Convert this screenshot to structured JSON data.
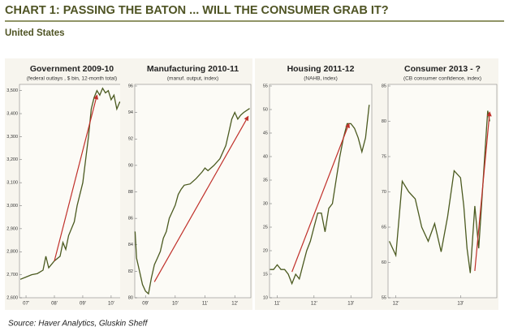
{
  "header": {
    "title": "CHART 1: PASSING THE BATON ... WILL THE CONSUMER GRAB IT?",
    "subtitle": "United States"
  },
  "source": "Source: Haver Analytics, Gluskin Sheff",
  "chart_data": [
    {
      "type": "line",
      "title": "Government 2009-10",
      "subtitle": "(federal outlays , $ bin, 12-month total)",
      "color": "#4b5a20",
      "x": [
        2006.8,
        2007.0,
        2007.2,
        2007.4,
        2007.6,
        2007.7,
        2007.8,
        2008.0,
        2008.2,
        2008.3,
        2008.4,
        2008.5,
        2008.6,
        2008.7,
        2008.8,
        2008.9,
        2009.0,
        2009.1,
        2009.2,
        2009.3,
        2009.4,
        2009.5,
        2009.6,
        2009.7,
        2009.8,
        2009.9,
        2010.0,
        2010.1,
        2010.2,
        2010.3,
        2010.4
      ],
      "values": [
        2680,
        2690,
        2700,
        2705,
        2720,
        2780,
        2730,
        2760,
        2780,
        2840,
        2810,
        2870,
        2900,
        2930,
        3000,
        3050,
        3100,
        3200,
        3300,
        3420,
        3470,
        3500,
        3480,
        3510,
        3490,
        3500,
        3460,
        3480,
        3420,
        3450,
        3440
      ],
      "xlim": [
        2006.77,
        2010.46
      ],
      "xticks": [
        {
          "value": 2007,
          "label": "07'"
        },
        {
          "value": 2008,
          "label": "08'"
        },
        {
          "value": 2009,
          "label": "09'"
        },
        {
          "value": 2010,
          "label": "10'"
        }
      ],
      "ylim": [
        2600,
        3520
      ],
      "yticks": [
        {
          "value": 2600,
          "label": "2,600"
        },
        {
          "value": 2700,
          "label": "2,700"
        },
        {
          "value": 2800,
          "label": "2,800"
        },
        {
          "value": 2900,
          "label": "2,900"
        },
        {
          "value": 3000,
          "label": "3,000"
        },
        {
          "value": 3100,
          "label": "3,100"
        },
        {
          "value": 3200,
          "label": "3,200"
        },
        {
          "value": 3300,
          "label": "3,300"
        },
        {
          "value": 3400,
          "label": "3,400"
        },
        {
          "value": 3500,
          "label": "3,500"
        }
      ],
      "arrow": {
        "x": [
          2008.0,
          2009.5
        ],
        "y": [
          2760,
          3480
        ],
        "color": "#c0302a"
      }
    },
    {
      "type": "line",
      "title": "Manufacturing 2010-11",
      "subtitle": "(manuf. output, index)",
      "color": "#4b5a20",
      "x": [
        2008.65,
        2008.7,
        2008.8,
        2008.9,
        2009.0,
        2009.1,
        2009.2,
        2009.3,
        2009.4,
        2009.5,
        2009.6,
        2009.7,
        2009.8,
        2009.9,
        2010.0,
        2010.1,
        2010.2,
        2010.3,
        2010.5,
        2010.7,
        2010.9,
        2011.0,
        2011.1,
        2011.3,
        2011.5,
        2011.7,
        2011.8,
        2011.9,
        2012.0,
        2012.1,
        2012.2,
        2012.3,
        2012.5
      ],
      "values": [
        85,
        83,
        82,
        81,
        80.5,
        80.3,
        81.5,
        82.5,
        83,
        83.5,
        84.5,
        85,
        86,
        86.5,
        87,
        87.8,
        88.2,
        88.5,
        88.6,
        89,
        89.5,
        89.8,
        89.6,
        90,
        90.5,
        91.5,
        92.5,
        93.5,
        94,
        93.5,
        93.8,
        94,
        94.3
      ],
      "xlim": [
        2008.64,
        2012.54
      ],
      "xticks": [
        {
          "value": 2009,
          "label": "09'"
        },
        {
          "value": 2010,
          "label": "10'"
        },
        {
          "value": 2011,
          "label": "11'"
        },
        {
          "value": 2012,
          "label": "12'"
        }
      ],
      "ylim": [
        80,
        96
      ],
      "yticks": [
        80,
        82,
        84,
        86,
        88,
        90,
        92,
        94,
        96
      ],
      "arrow": {
        "x": [
          2009.3,
          2012.45
        ],
        "y": [
          81.2,
          93.7
        ],
        "color": "#c0302a"
      }
    },
    {
      "type": "line",
      "title": "Housing 2011-12",
      "subtitle": "(NAHB, index)",
      "color": "#4b5a20",
      "x": [
        2010.8,
        2010.9,
        2011.0,
        2011.1,
        2011.2,
        2011.3,
        2011.4,
        2011.5,
        2011.6,
        2011.7,
        2011.8,
        2011.9,
        2012.0,
        2012.1,
        2012.2,
        2012.3,
        2012.4,
        2012.5,
        2012.6,
        2012.7,
        2012.8,
        2012.9,
        2013.0,
        2013.1,
        2013.2,
        2013.3,
        2013.4,
        2013.5
      ],
      "values": [
        16,
        16,
        17,
        16,
        16,
        15,
        13,
        15,
        14,
        17,
        20,
        22,
        25,
        28,
        28,
        24,
        29,
        30,
        35,
        40,
        44,
        47,
        47,
        46,
        44,
        41,
        44,
        51
      ],
      "xlim": [
        2010.79,
        2013.57
      ],
      "xticks": [
        {
          "value": 2011,
          "label": "11'"
        },
        {
          "value": 2012,
          "label": "12'"
        },
        {
          "value": 2013,
          "label": "13'"
        }
      ],
      "ylim": [
        10,
        55
      ],
      "yticks": [
        10,
        15,
        20,
        25,
        30,
        35,
        40,
        45,
        50,
        55
      ],
      "arrow": {
        "x": [
          2011.4,
          2012.95
        ],
        "y": [
          15.5,
          47
        ],
        "color": "#c0302a"
      }
    },
    {
      "type": "line",
      "title": "Consumer 2013 - ?",
      "subtitle": "(CB consumer confidence, index)",
      "color": "#4b5a20",
      "x": [
        2011.9,
        2012.0,
        2012.1,
        2012.2,
        2012.3,
        2012.4,
        2012.5,
        2012.6,
        2012.7,
        2012.8,
        2012.9,
        2013.0,
        2013.05,
        2013.1,
        2013.15,
        2013.22,
        2013.28,
        2013.33,
        2013.38,
        2013.42,
        2013.45
      ],
      "values": [
        63,
        61,
        71.5,
        70,
        69,
        65,
        63,
        65.5,
        61.5,
        66.5,
        73,
        72,
        68,
        62,
        58.5,
        68,
        62,
        69,
        76,
        81.5,
        80
      ],
      "xlim": [
        2011.88,
        2013.56
      ],
      "xticks": [
        {
          "value": 2012,
          "label": "12'"
        },
        {
          "value": 2013,
          "label": "13'"
        }
      ],
      "ylim": [
        55,
        85
      ],
      "yticks": [
        55,
        60,
        65,
        70,
        75,
        80,
        85
      ],
      "arrow": {
        "x": [
          2013.22,
          2013.45
        ],
        "y": [
          58.8,
          81.3
        ],
        "color": "#c0302a"
      }
    }
  ]
}
